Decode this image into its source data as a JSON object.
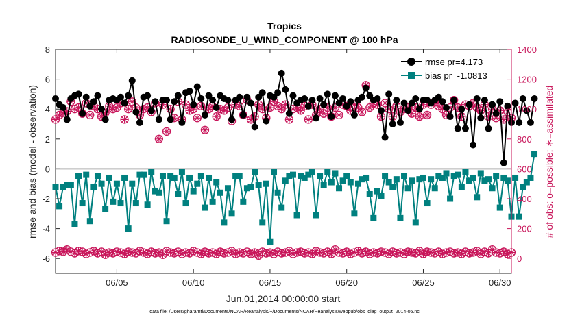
{
  "chart_data": {
    "type": "line",
    "title": "Tropics",
    "subtitle": "RADIOSONDE_U_WIND_COMPONENT @ 100 hPa",
    "xlabel": "Jun.01,2014 00:00:00 start",
    "ylabel": "rmse and bias (model - observation)",
    "y2label": "# of obs: o=possible; ∗=assimilated",
    "footnote": "data file: /Users/gharamti/Documents/NCAR/Reanalysis/~/Documents/NCAR/Reanalysis/webpub/obs_diag_output_2014-06.nc",
    "xlim": [
      1.0,
      30.75
    ],
    "ylim": [
      -7,
      8
    ],
    "y2lim": [
      -100,
      1400
    ],
    "xticks": [
      5,
      10,
      15,
      20,
      25,
      30
    ],
    "xtick_labels": [
      "06/05",
      "06/10",
      "06/15",
      "06/20",
      "06/25",
      "06/30"
    ],
    "yticks": [
      -6,
      -4,
      -2,
      0,
      2,
      4,
      6,
      8
    ],
    "ytick_labels": [
      "-6",
      "-4",
      "-2",
      "0",
      "2",
      "4",
      "6",
      "8"
    ],
    "y2ticks": [
      0,
      200,
      400,
      600,
      800,
      1000,
      1200,
      1400
    ],
    "y2tick_labels": [
      "0",
      "200",
      "400",
      "600",
      "800",
      "1000",
      "1200",
      "1400"
    ],
    "x_step_days": 0.25,
    "x_start": 1.0,
    "series": [
      {
        "name": "rmse pr=4.173",
        "legend": "rmse pr=4.173",
        "axis": "left",
        "color": "#000000",
        "marker": "circle",
        "values": [
          4.7,
          4.3,
          4.1,
          3.3,
          4.7,
          4.9,
          5.0,
          3.7,
          4.8,
          4.2,
          4.5,
          4.9,
          4.0,
          3.3,
          4.6,
          4.7,
          4.6,
          4.8,
          4.4,
          4.9,
          5.9,
          3.8,
          3.1,
          4.8,
          4.9,
          3.9,
          4.5,
          3.3,
          4.6,
          4.6,
          3.3,
          4.5,
          4.9,
          3.1,
          5.1,
          5.2,
          4.3,
          5.5,
          4.7,
          3.6,
          4.9,
          4.6,
          4.1,
          4.9,
          4.7,
          4.6,
          3.3,
          4.6,
          4.8,
          3.6,
          4.8,
          4.4,
          2.8,
          4.8,
          5.1,
          3.2,
          4.9,
          4.8,
          5.1,
          6.4,
          5.3,
          3.7,
          4.9,
          4.4,
          4.6,
          4.7,
          4.2,
          4.6,
          3.4,
          4.7,
          4.3,
          5.0,
          3.5,
          4.9,
          4.4,
          4.7,
          4.2,
          4.5,
          3.6,
          4.6,
          4.8,
          5.4,
          4.9,
          4.6,
          4.7,
          3.9,
          2.1,
          5.0,
          3.0,
          4.6,
          3.1,
          4.4,
          3.9,
          4.4,
          4.7,
          4.0,
          4.6,
          4.6,
          4.4,
          4.6,
          4.8,
          4.5,
          4.1,
          3.5,
          4.6,
          2.7,
          4.0,
          2.7,
          4.3,
          1.6,
          4.7,
          3.4,
          4.6,
          2.7,
          4.3,
          3.7,
          4.5,
          0.4,
          4.2,
          3.1,
          4.4,
          3.1,
          4.7,
          3.9,
          3.1,
          4.7
        ]
      },
      {
        "name": "bias pr=-1.0813",
        "legend": "bias pr=-1.0813",
        "axis": "left",
        "color": "#00807f",
        "marker": "square",
        "values": [
          -1.2,
          -2.5,
          -1.2,
          -1.1,
          -1.1,
          -3.7,
          -0.5,
          -2.3,
          -0.4,
          -3.5,
          -1.2,
          -0.5,
          -1.0,
          -2.7,
          -0.6,
          -2.2,
          -1.0,
          -2.3,
          -0.6,
          -4.0,
          -1.0,
          -2.3,
          -0.4,
          -0.4,
          -2.4,
          -0.2,
          -1.5,
          -1.6,
          -0.5,
          -3.5,
          -0.5,
          -0.6,
          -1.7,
          -0.2,
          -2.3,
          -0.6,
          -1.5,
          -1.0,
          -0.5,
          -2.6,
          -0.6,
          -2.2,
          -0.9,
          -1.6,
          -3.6,
          -1.3,
          -3.0,
          -0.5,
          -0.5,
          -2.2,
          -1.3,
          -1.2,
          -0.2,
          -1.1,
          -3.6,
          -1.0,
          -4.9,
          -0.2,
          -1.6,
          -2.6,
          -0.8,
          -0.5,
          -0.4,
          -3.1,
          -0.5,
          -0.6,
          -0.4,
          -0.2,
          -3.1,
          -0.5,
          -1.1,
          -0.2,
          -0.9,
          -0.3,
          -1.3,
          -0.8,
          -0.5,
          -0.9,
          -3.0,
          -1.0,
          -0.7,
          -0.6,
          -1.7,
          -3.3,
          -1.5,
          -1.8,
          -0.5,
          -0.9,
          -1.2,
          -0.7,
          -3.3,
          -0.5,
          -1.3,
          -0.8,
          -3.6,
          -0.7,
          -0.6,
          -2.3,
          -0.7,
          -1.3,
          -0.5,
          -0.6,
          -0.3,
          -2.0,
          -0.5,
          -0.4,
          -1.2,
          -0.2,
          -0.8,
          -0.6,
          -1.9,
          -0.3,
          -0.8,
          -0.7,
          -1.3,
          -0.5,
          -2.6,
          -0.6,
          -0.8,
          -3.2,
          -0.6,
          -3.2,
          -1.2,
          -0.9,
          -0.6,
          1.0
        ]
      },
      {
        "name": "obs possible",
        "axis": "right",
        "color": "#c8155a",
        "marker": "circle-open",
        "values": [
          930,
          960,
          975,
          985,
          1050,
          1000,
          1010,
          970,
          1040,
          960,
          1020,
          1000,
          950,
          975,
          1020,
          1000,
          1010,
          1040,
          930,
          1000,
          1050,
          1010,
          960,
          1000,
          1010,
          980,
          1040,
          800,
          1030,
          850,
          1000,
          940,
          1050,
          930,
          1030,
          990,
          1000,
          940,
          1020,
          860,
          1000,
          1020,
          950,
          1000,
          990,
          1010,
          920,
          1030,
          1020,
          960,
          1060,
          930,
          950,
          1030,
          1000,
          940,
          1010,
          1050,
          1020,
          1000,
          1030,
          930,
          1000,
          1010,
          990,
          1020,
          930,
          1030,
          960,
          1000,
          970,
          1010,
          950,
          1010,
          960,
          1030,
          1020,
          990,
          1030,
          1010,
          980,
          1160,
          1010,
          1040,
          1030,
          950,
          1040,
          1000,
          950,
          1020,
          980,
          1000,
          1010,
          970,
          1010,
          950,
          1030,
          960,
          1030,
          1050,
          1020,
          1000,
          960,
          1010,
          1060,
          1010,
          950,
          1030,
          1020,
          1040,
          1010,
          990,
          1030,
          950,
          1000,
          940,
          990,
          930,
          980,
          940,
          920,
          960,
          1000,
          880,
          1010,
          940
        ]
      },
      {
        "name": "obs assimilated",
        "axis": "right",
        "color": "#c8155a",
        "marker": "asterisk",
        "values": [
          930,
          960,
          975,
          985,
          1050,
          1000,
          1010,
          970,
          1040,
          960,
          1020,
          1000,
          950,
          975,
          1020,
          1000,
          1010,
          1040,
          930,
          1000,
          1050,
          1010,
          960,
          1000,
          1010,
          980,
          1040,
          800,
          1030,
          850,
          1000,
          940,
          1050,
          930,
          1030,
          990,
          1000,
          940,
          1020,
          860,
          1000,
          1020,
          950,
          1000,
          990,
          1010,
          920,
          1030,
          1020,
          960,
          1060,
          930,
          950,
          1030,
          1000,
          940,
          1010,
          1050,
          1020,
          1000,
          1030,
          930,
          1000,
          1010,
          990,
          1020,
          930,
          1030,
          960,
          1000,
          970,
          1010,
          950,
          1010,
          960,
          1030,
          1020,
          990,
          1030,
          1010,
          980,
          1160,
          1010,
          1040,
          1030,
          950,
          1040,
          1000,
          950,
          1020,
          980,
          1000,
          1010,
          970,
          1010,
          950,
          1030,
          960,
          1030,
          1050,
          1020,
          1000,
          960,
          1010,
          1060,
          1010,
          950,
          1030,
          1020,
          1040,
          1010,
          990,
          1030,
          950,
          1000,
          940,
          990,
          930,
          980,
          940,
          920,
          960,
          1000,
          880,
          1010,
          940
        ]
      },
      {
        "name": "obs possible (low)",
        "axis": "right",
        "color": "#c8155a",
        "marker": "circle-open",
        "values": [
          40,
          50,
          45,
          60,
          45,
          35,
          50,
          45,
          30,
          40,
          50,
          35,
          45,
          25,
          40,
          35,
          45,
          40,
          30,
          45,
          40,
          35,
          50,
          40,
          30,
          45,
          35,
          40,
          25,
          50,
          40,
          35,
          45,
          30,
          40,
          35,
          50,
          40,
          30,
          45,
          35,
          40,
          30,
          45,
          35,
          40,
          50,
          30,
          40,
          35,
          45,
          30,
          40,
          20,
          45,
          35,
          40,
          30,
          45,
          35,
          40,
          50,
          30,
          40,
          45,
          35,
          40,
          30,
          50,
          40,
          35,
          45,
          30,
          60,
          40,
          35,
          45,
          30,
          40,
          50,
          35,
          45,
          30,
          40,
          35,
          45,
          40,
          30,
          45,
          35,
          40,
          30,
          45,
          40,
          35,
          50,
          30,
          45,
          40,
          35,
          45,
          30,
          40,
          45,
          35,
          40,
          30,
          45,
          35,
          40,
          50,
          30,
          45,
          35,
          60,
          40,
          35,
          45,
          30,
          40,
          20,
          55,
          35,
          10,
          5
        ]
      },
      {
        "name": "obs assimilated (low)",
        "axis": "right",
        "color": "#c8155a",
        "marker": "asterisk",
        "values": [
          40,
          50,
          45,
          60,
          45,
          35,
          50,
          45,
          30,
          40,
          50,
          35,
          45,
          25,
          40,
          35,
          45,
          40,
          30,
          45,
          40,
          35,
          50,
          40,
          30,
          45,
          35,
          40,
          25,
          50,
          40,
          35,
          45,
          30,
          40,
          35,
          50,
          40,
          30,
          45,
          35,
          40,
          30,
          45,
          35,
          40,
          50,
          30,
          40,
          35,
          45,
          30,
          40,
          20,
          45,
          35,
          40,
          30,
          45,
          35,
          40,
          50,
          30,
          40,
          45,
          35,
          40,
          30,
          50,
          40,
          35,
          45,
          30,
          60,
          40,
          35,
          45,
          30,
          40,
          50,
          35,
          45,
          30,
          40,
          35,
          45,
          40,
          30,
          45,
          35,
          40,
          30,
          45,
          40,
          35,
          50,
          30,
          45,
          40,
          35,
          45,
          30,
          40,
          45,
          35,
          40,
          30,
          45,
          35,
          40,
          50,
          30,
          45,
          35,
          60,
          40,
          35,
          45,
          30,
          40,
          20,
          55,
          35,
          10,
          5
        ]
      }
    ]
  }
}
